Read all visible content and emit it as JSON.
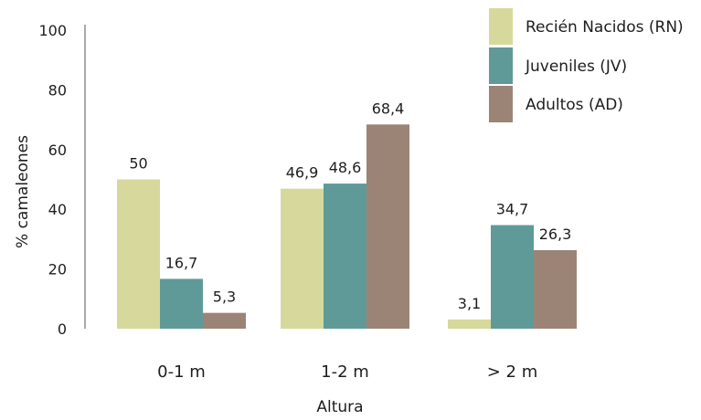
{
  "chart_data": {
    "type": "bar",
    "categories": [
      "0-1 m",
      "1-2 m",
      "> 2 m"
    ],
    "series": [
      {
        "name": "Recién Nacidos (RN)",
        "color": "#d6d99b",
        "values": [
          50,
          46.9,
          3.1
        ],
        "labels": [
          "50",
          "46,9",
          "3,1"
        ]
      },
      {
        "name": "Juveniles (JV)",
        "color": "#5f9a98",
        "values": [
          16.7,
          48.6,
          34.7
        ],
        "labels": [
          "16,7",
          "48,6",
          "34,7"
        ]
      },
      {
        "name": "Adultos (AD)",
        "color": "#9b8476",
        "values": [
          5.3,
          68.4,
          26.3
        ],
        "labels": [
          "5,3",
          "68,4",
          "26,3"
        ]
      }
    ],
    "xlabel": "Altura",
    "ylabel": "% camaleones",
    "ylim": [
      0,
      100
    ],
    "yticks": [
      "0",
      "20",
      "40",
      "60",
      "80",
      "100"
    ],
    "legend_position": "top-right",
    "grid": false
  }
}
